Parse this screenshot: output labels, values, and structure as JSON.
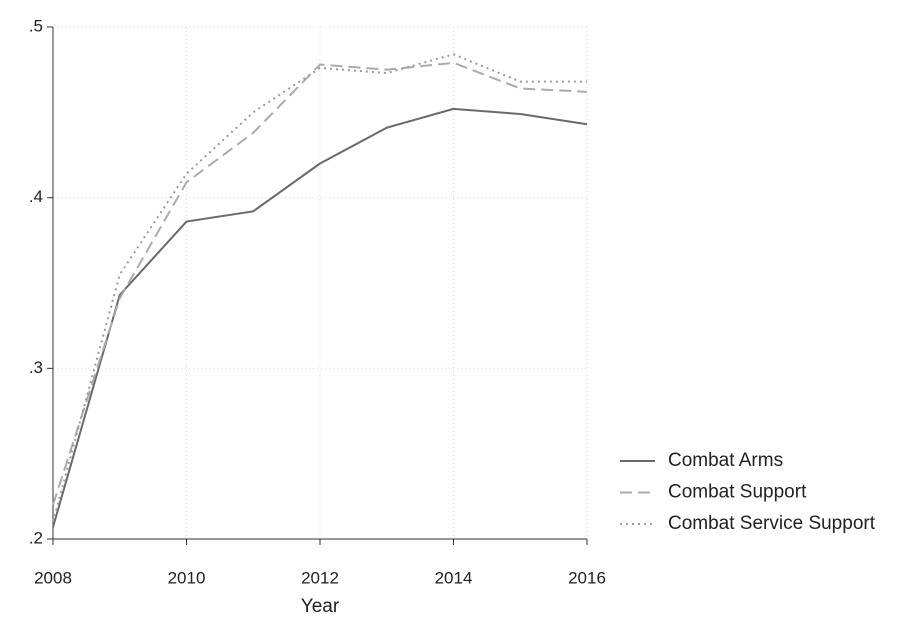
{
  "chart_data": {
    "type": "line",
    "x": [
      2008,
      2009,
      2010,
      2011,
      2012,
      2013,
      2014,
      2015,
      2016
    ],
    "xlim": [
      2008,
      2016
    ],
    "xticks": [
      2008,
      2010,
      2012,
      2014,
      2016
    ],
    "x_label": "Year",
    "ylim": [
      0.2,
      0.5
    ],
    "yticks": [
      {
        "value": 0.2,
        "label": ".2"
      },
      {
        "value": 0.3,
        "label": ".3"
      },
      {
        "value": 0.4,
        "label": ".4"
      },
      {
        "value": 0.5,
        "label": ".5"
      }
    ],
    "grid": true,
    "legend": "right",
    "series": [
      {
        "name": "Combat Arms",
        "color": "#6a6a6a",
        "style": "solid",
        "values": [
          0.207,
          0.343,
          0.386,
          0.392,
          0.42,
          0.441,
          0.452,
          0.449,
          0.443
        ]
      },
      {
        "name": "Combat Support",
        "color": "#ababab",
        "style": "dashed",
        "values": [
          0.22,
          0.341,
          0.409,
          0.438,
          0.478,
          0.475,
          0.479,
          0.464,
          0.462
        ]
      },
      {
        "name": "Combat Service Support",
        "color": "#9a9a9a",
        "style": "dotted",
        "values": [
          0.21,
          0.355,
          0.414,
          0.45,
          0.476,
          0.473,
          0.484,
          0.468,
          0.468
        ]
      }
    ]
  }
}
